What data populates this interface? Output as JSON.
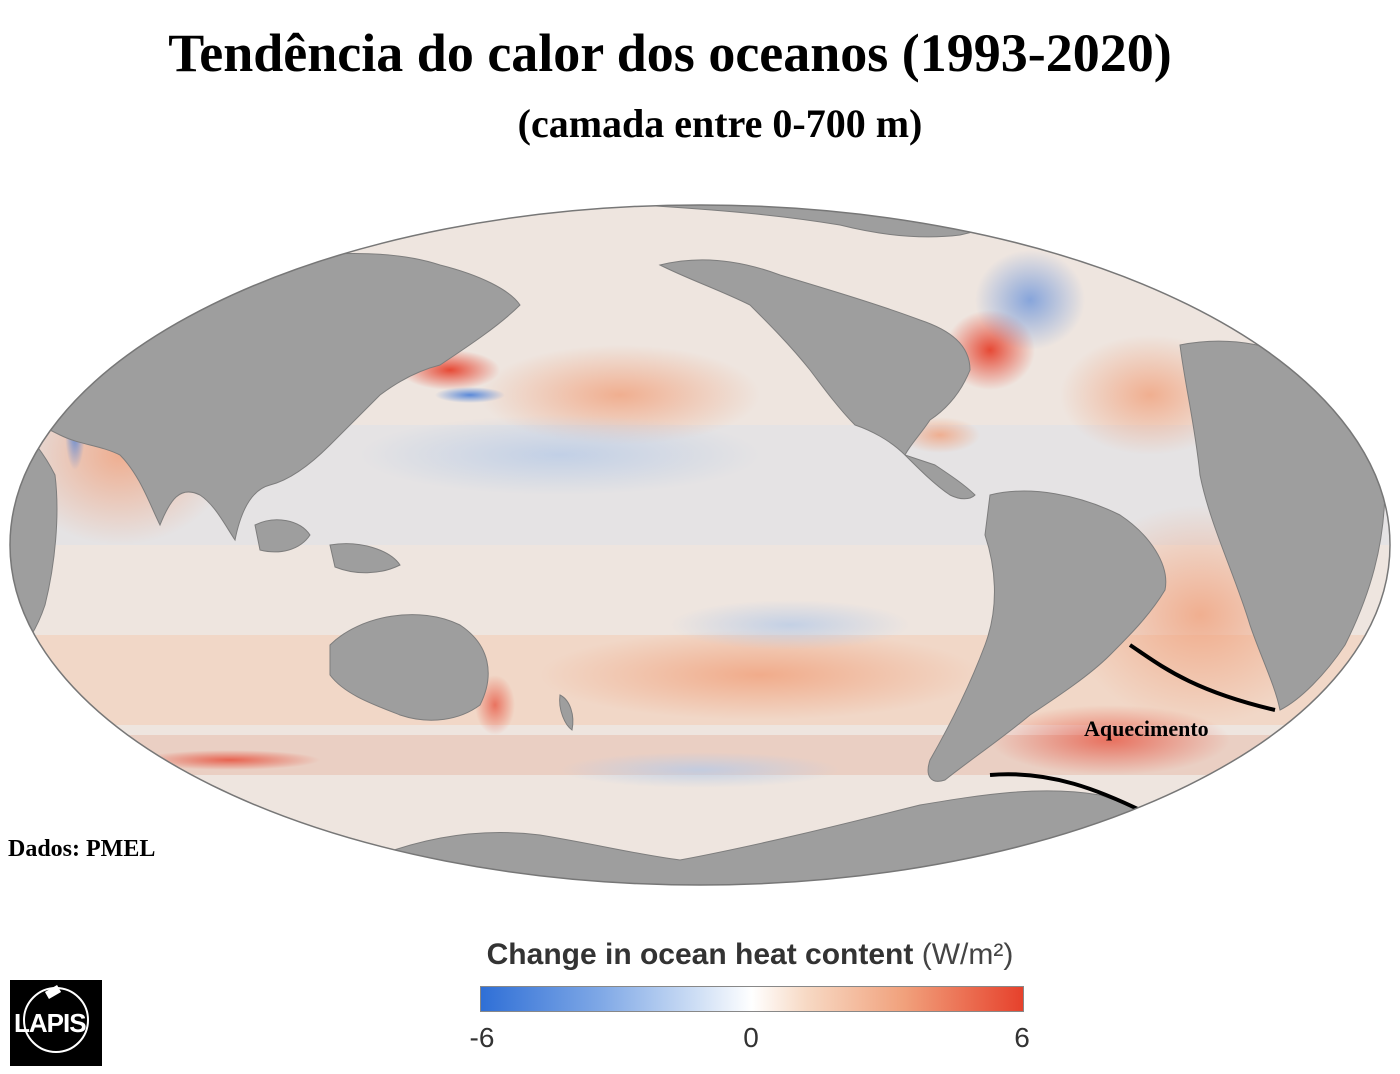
{
  "title": "Tendência do calor dos oceanos (1993-2020)",
  "subtitle": "(camada entre 0-700 m)",
  "credit": "Dados: PMEL",
  "annotation": "Aquecimento",
  "legend": {
    "name": "Change in ocean heat content",
    "unit": "(W/m²)",
    "min_label": "-6",
    "mid_label": "0",
    "max_label": "6",
    "colors": {
      "negative": "#2f6fd6",
      "neutral": "#ffffff",
      "positive": "#e6412c"
    }
  },
  "logo": {
    "text": "LAPIS"
  },
  "colors": {
    "land": "#9e9e9e",
    "ocean_base": "#efe6e1",
    "warm": "#e6412c",
    "cool": "#4a7fd8"
  }
}
